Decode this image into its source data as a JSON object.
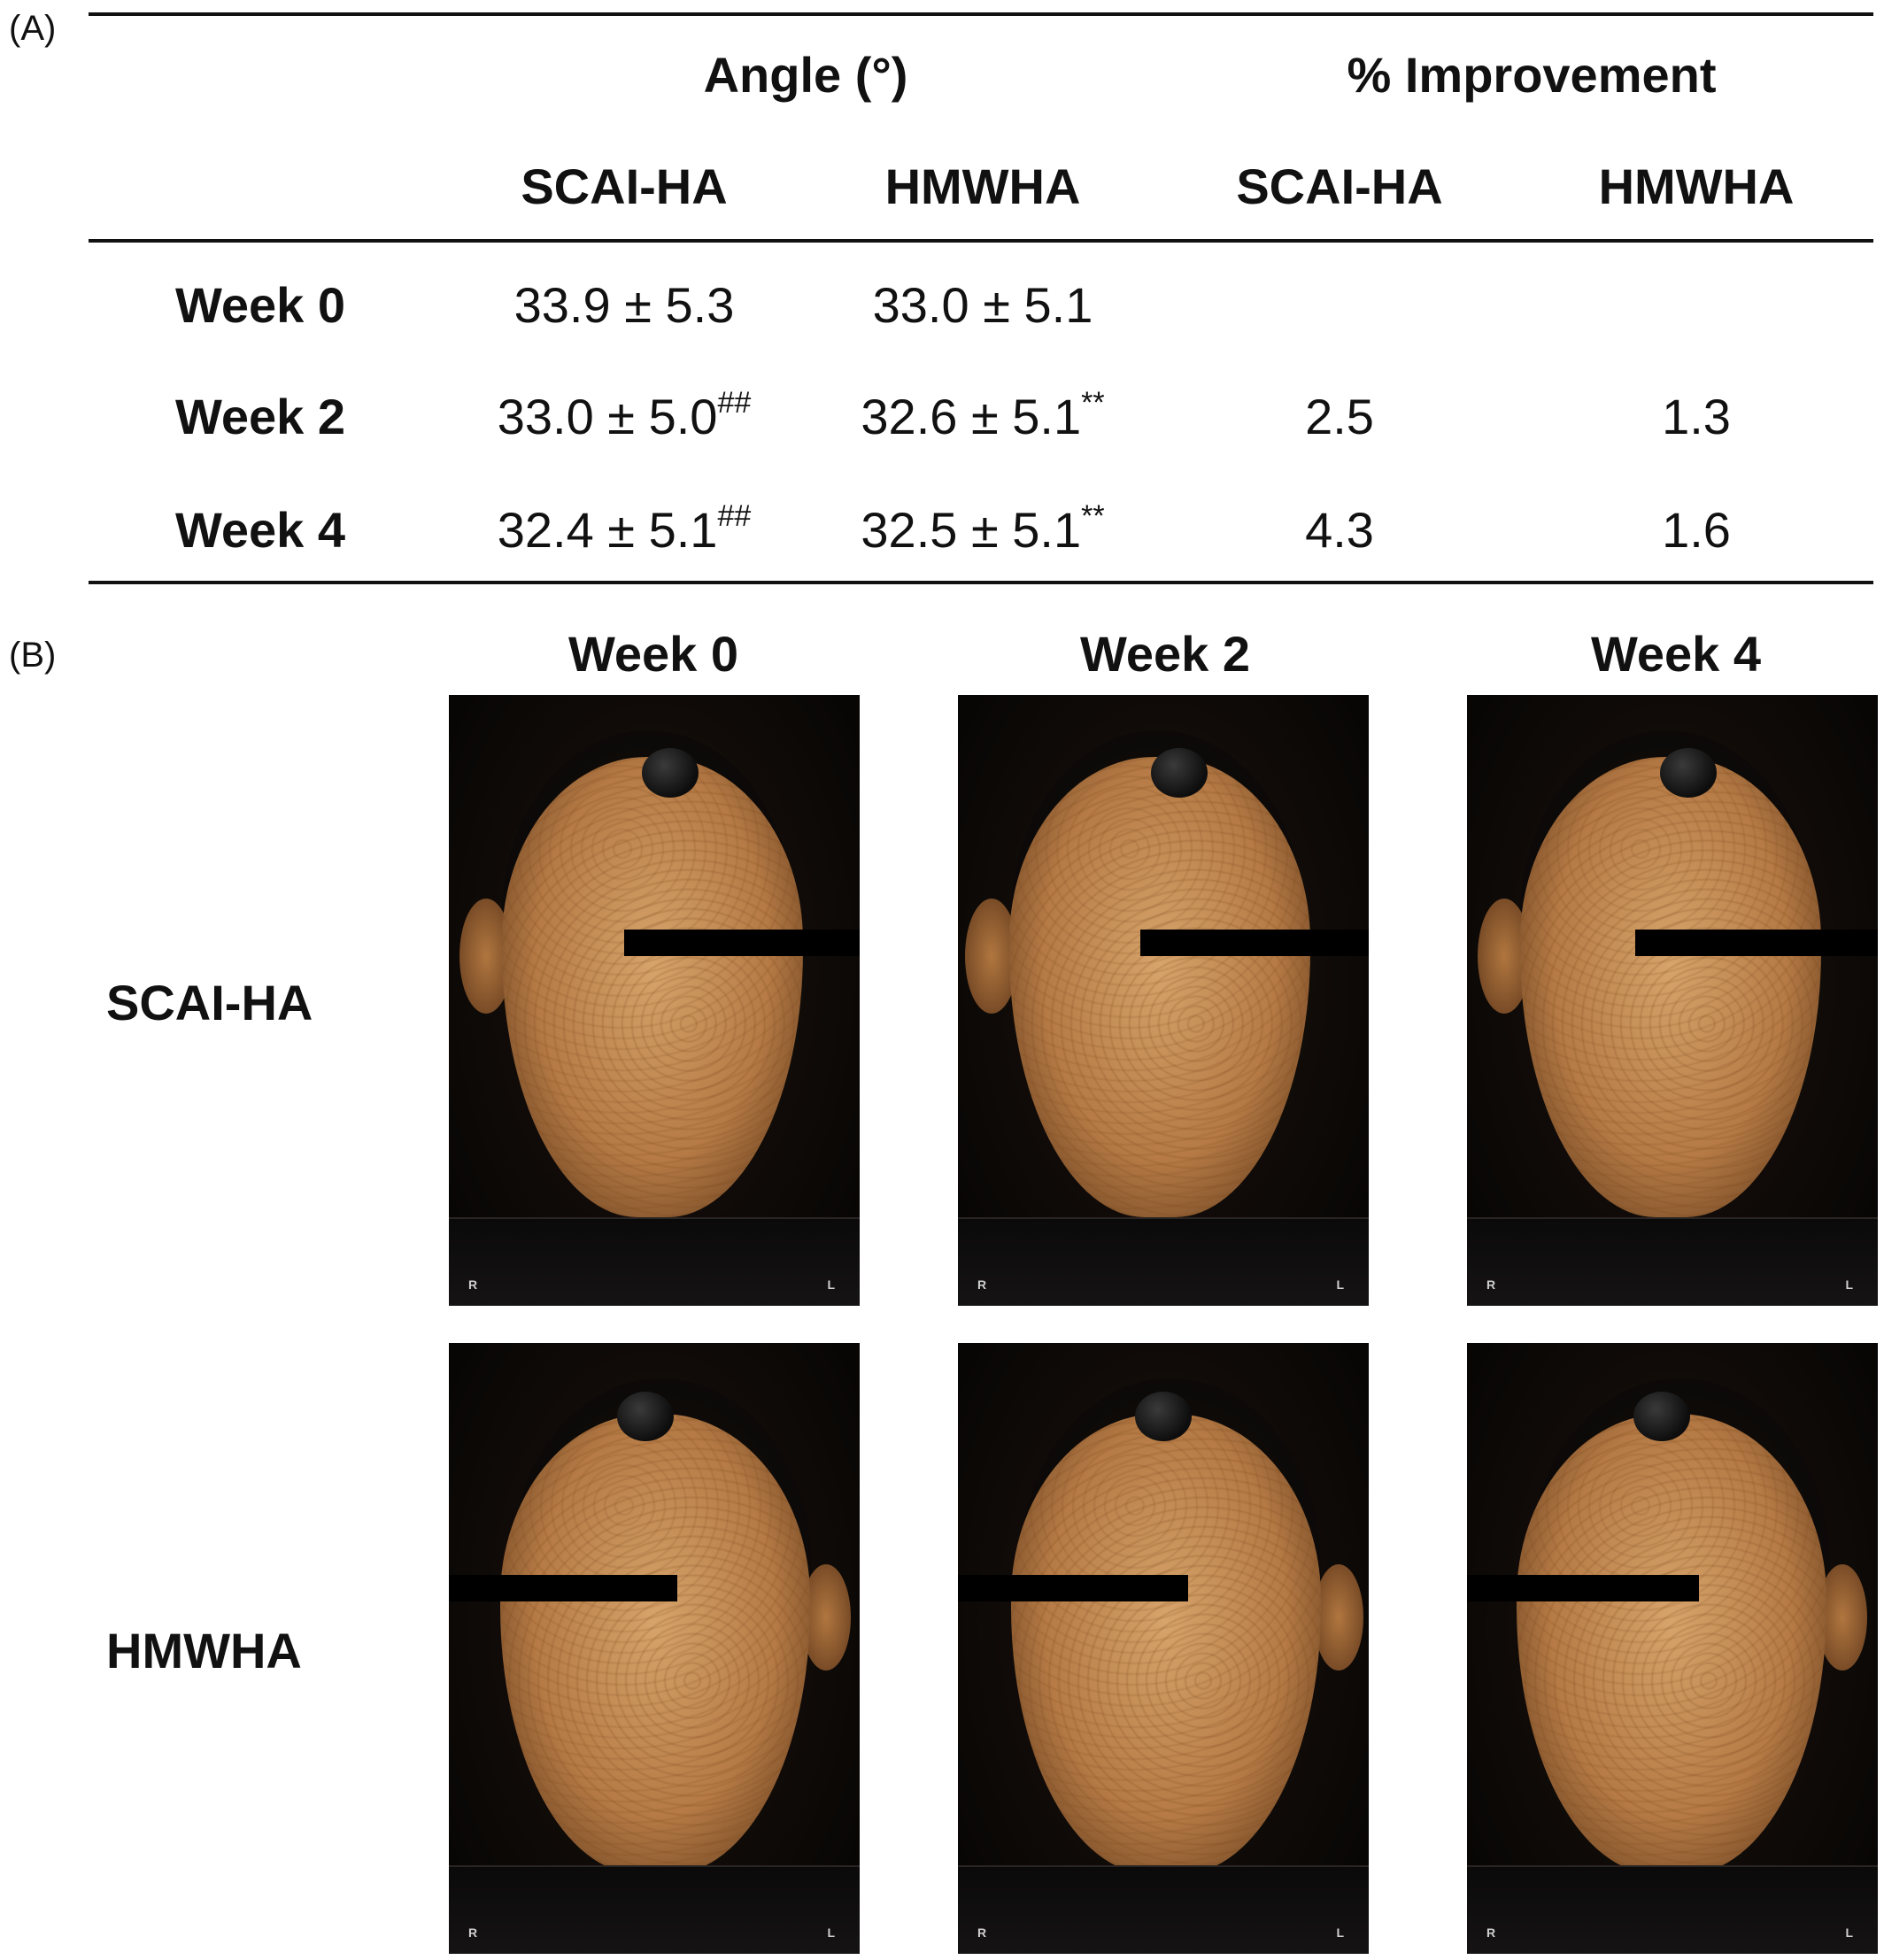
{
  "panel_a_label": "(A)",
  "panel_b_label": "(B)",
  "table": {
    "group_headers": [
      "Angle (°)",
      "% Improvement"
    ],
    "sub_headers": [
      "SCAI-HA",
      "HMWHA",
      "SCAI-HA",
      "HMWHA"
    ],
    "rows": [
      {
        "label": "Week 0",
        "angle_scai": "33.9 ± 5.3",
        "angle_scai_sup": "",
        "angle_hmw": "33.0 ± 5.1",
        "angle_hmw_sup": "",
        "imp_scai": "",
        "imp_hmw": ""
      },
      {
        "label": "Week 2",
        "angle_scai": "33.0 ± 5.0",
        "angle_scai_sup": "##",
        "angle_hmw": "32.6 ± 5.1",
        "angle_hmw_sup": "**",
        "imp_scai": "2.5",
        "imp_hmw": "1.3"
      },
      {
        "label": "Week 4",
        "angle_scai": "32.4 ± 5.1",
        "angle_scai_sup": "##",
        "angle_hmw": "32.5 ± 5.1",
        "angle_hmw_sup": "**",
        "imp_scai": "4.3",
        "imp_hmw": "1.6"
      }
    ]
  },
  "photos": {
    "week_titles": [
      "Week 0",
      "Week 2",
      "Week 4"
    ],
    "groups": [
      "SCAI-HA",
      "HMWHA"
    ],
    "corner_left": "R",
    "corner_right": "L"
  }
}
